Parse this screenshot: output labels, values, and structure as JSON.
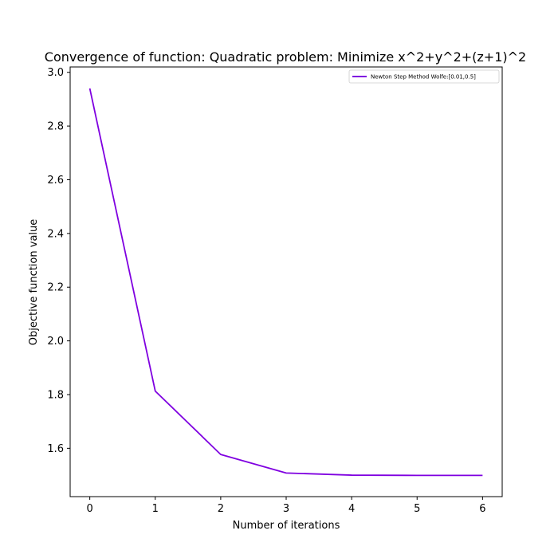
{
  "chart_data": {
    "type": "line",
    "title": "Convergence of function: Quadratic problem: Minimize x^2+y^2+(z+1)^2",
    "xlabel": "Number of iterations",
    "ylabel": "Objective function value",
    "xlim": [
      -0.3,
      6.3
    ],
    "ylim": [
      1.42,
      3.02
    ],
    "xticks": [
      0,
      1,
      2,
      3,
      4,
      5,
      6
    ],
    "yticks": [
      1.6,
      1.8,
      2.0,
      2.2,
      2.4,
      2.6,
      2.8,
      3.0
    ],
    "ytick_labels": [
      "1.6",
      "1.8",
      "2.0",
      "2.2",
      "2.4",
      "2.6",
      "2.8",
      "3.0"
    ],
    "grid": false,
    "legend_position": "top-right",
    "series": [
      {
        "name": "Newton Step Method Wolfe:[0.01,0.5]",
        "color": "#7f00e0",
        "x": [
          0,
          1,
          2,
          3,
          4,
          5,
          6
        ],
        "y": [
          2.94,
          1.813,
          1.577,
          1.508,
          1.5,
          1.499,
          1.499
        ]
      }
    ]
  }
}
